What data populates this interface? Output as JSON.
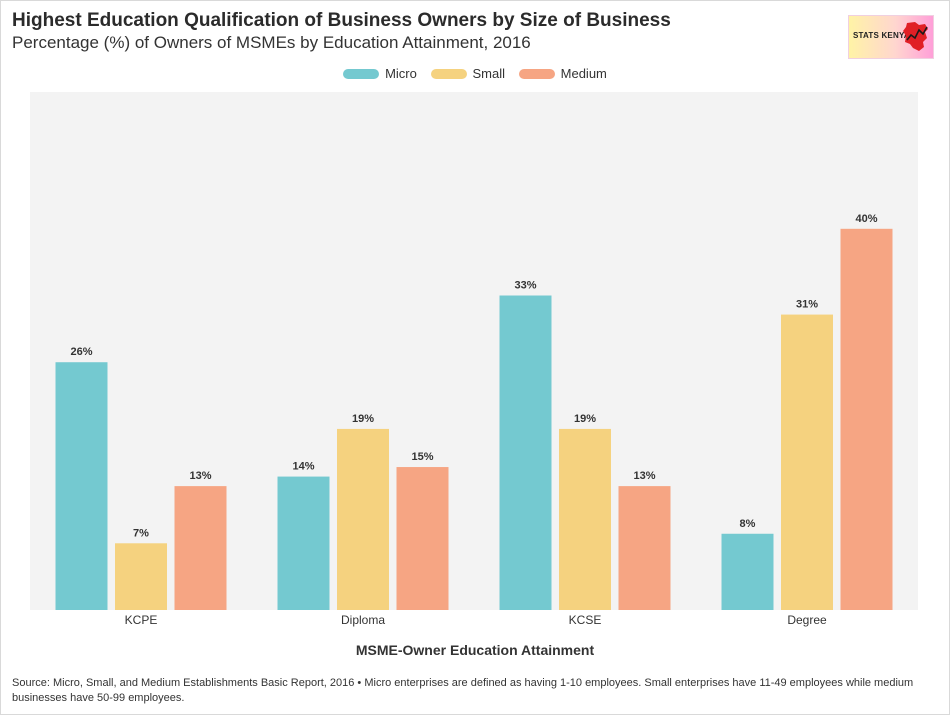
{
  "header": {
    "title": "Highest Education Qualification of Business Owners by Size of Business",
    "subtitle": "Percentage (%) of Owners of MSMEs by Education Attainment, 2016"
  },
  "logo": {
    "text": "STATS KENYA",
    "icon": "kenya-map-icon"
  },
  "colors": {
    "Micro": "#74c9d0",
    "Small": "#f5d27f",
    "Medium": "#f6a583",
    "plot_bg": "#f3f3f3",
    "label": "#333333"
  },
  "chart_data": {
    "type": "bar",
    "categories": [
      "KCPE",
      "Diploma",
      "KCSE",
      "Degree"
    ],
    "series": [
      {
        "name": "Micro",
        "values": [
          26,
          14,
          33,
          8
        ],
        "labels": [
          "26%",
          "14%",
          "33%",
          "8%"
        ]
      },
      {
        "name": "Small",
        "values": [
          7,
          19,
          19,
          31
        ],
        "labels": [
          "7%",
          "19%",
          "19%",
          "31%"
        ]
      },
      {
        "name": "Medium",
        "values": [
          13,
          15,
          13,
          40
        ],
        "labels": [
          "13%",
          "15%",
          "13%",
          "40%"
        ]
      }
    ],
    "xlabel": "MSME-Owner Education Attainment",
    "ylabel": "",
    "ylim": [
      0,
      45
    ],
    "legend": "top-center",
    "grid": false
  },
  "footer": {
    "source": "Source: Micro, Small, and Medium Establishments Basic Report, 2016 • Micro enterprises are defined as having 1-10 employees. Small enterprises have 11-49 employees while medium businesses have 50-99 employees."
  }
}
